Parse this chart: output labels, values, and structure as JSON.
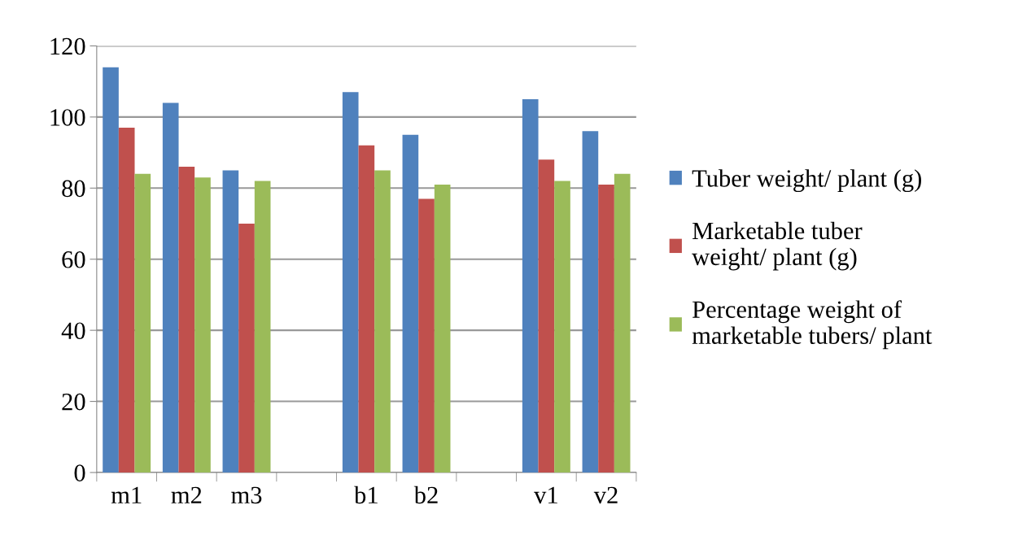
{
  "chart_data": {
    "type": "bar",
    "categories": [
      "m1",
      "m2",
      "m3",
      null,
      "b1",
      "b2",
      null,
      "v1",
      "v2"
    ],
    "series": [
      {
        "name": "Tuber weight/ plant (g)",
        "color": "#4f81bd",
        "values": [
          114,
          104,
          85,
          null,
          107,
          95,
          null,
          105,
          96
        ]
      },
      {
        "name": "Marketable tuber\nweight/ plant (g)",
        "color": "#c0504d",
        "values": [
          97,
          86,
          70,
          null,
          92,
          77,
          null,
          88,
          81
        ]
      },
      {
        "name": "Percentage weight of\nmarketable tubers/ plant",
        "color": "#9bbb59",
        "values": [
          84,
          83,
          82,
          null,
          85,
          81,
          null,
          82,
          84
        ]
      }
    ],
    "ylim": [
      0,
      120
    ],
    "yticks": [
      0,
      20,
      40,
      60,
      80,
      100,
      120
    ],
    "grid": "y",
    "legend": "right"
  }
}
